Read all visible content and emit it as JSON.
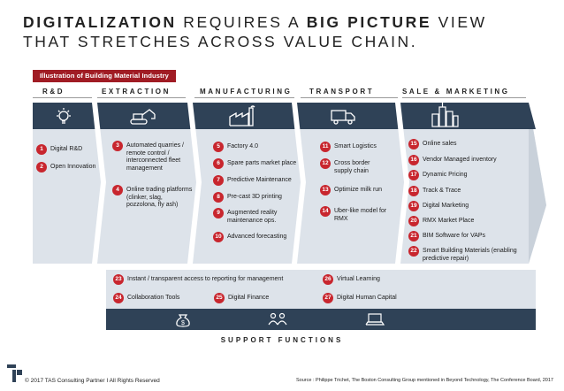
{
  "title": {
    "line1_bold_a": "DIGITALIZATION",
    "line1_regular": " REQUIRES A ",
    "line1_bold_b": "BIG PICTURE",
    "line1_end": " VIEW",
    "line2": "THAT STRETCHES ACROSS VALUE CHAIN."
  },
  "tag": "Illustration of Building Material Industry",
  "columns": [
    {
      "label": "R&D",
      "icon": "lightbulb-icon"
    },
    {
      "label": "EXTRACTION",
      "icon": "excavator-icon"
    },
    {
      "label": "MANUFACTURING",
      "icon": "factory-icon"
    },
    {
      "label": "TRANSPORT",
      "icon": "truck-icon"
    },
    {
      "label": "SALE & MARKETING",
      "icon": "city-buildings-icon"
    }
  ],
  "items": {
    "rnd": [
      {
        "n": "1",
        "text": "Digital R&D"
      },
      {
        "n": "2",
        "text": "Open Innovation"
      }
    ],
    "extraction": [
      {
        "n": "3",
        "text": "Automated quarries / remote control / interconnected fleet management"
      },
      {
        "n": "4",
        "text": "Online trading platforms (clinker, slag, pozzolona, fly ash)"
      }
    ],
    "manufacturing": [
      {
        "n": "5",
        "text": "Factory 4.0"
      },
      {
        "n": "6",
        "text": "Spare parts market place"
      },
      {
        "n": "7",
        "text": "Predictive Maintenance"
      },
      {
        "n": "8",
        "text": "Pre-cast 3D printing"
      },
      {
        "n": "9",
        "text": "Augmented reality maintenance ops."
      },
      {
        "n": "10",
        "text": "Advanced forecasting"
      }
    ],
    "transport": [
      {
        "n": "11",
        "text": "Smart Logistics"
      },
      {
        "n": "12",
        "text": "Cross border supply chain"
      },
      {
        "n": "13",
        "text": "Optimize milk run"
      },
      {
        "n": "14",
        "text": "Uber-like model for RMX"
      }
    ],
    "sales": [
      {
        "n": "15",
        "text": "Online sales"
      },
      {
        "n": "16",
        "text": "Vendor Managed inventory"
      },
      {
        "n": "17",
        "text": "Dynamic Pricing"
      },
      {
        "n": "18",
        "text": "Track & Trace"
      },
      {
        "n": "19",
        "text": "Digital Marketing"
      },
      {
        "n": "20",
        "text": "RMX Market Place"
      },
      {
        "n": "21",
        "text": "BIM Software for VAPs"
      },
      {
        "n": "22",
        "text": "Smart Building Materials (enabling predictive repair)"
      }
    ],
    "support": [
      {
        "n": "23",
        "text": "Instant / transparent access to reporting for management"
      },
      {
        "n": "24",
        "text": "Collaboration Tools"
      },
      {
        "n": "25",
        "text": "Digital Finance"
      },
      {
        "n": "26",
        "text": "Virtual Learning"
      },
      {
        "n": "27",
        "text": "Digital Human Capital"
      }
    ]
  },
  "support_icons": [
    "people-icon",
    "money-bag-icon",
    "laptop-icon"
  ],
  "support_label": "SUPPORT FUNCTIONS",
  "footer": {
    "copyright": "© 2017 TAS Consulting Partner  I  All Rights Reserved",
    "source": "Source :  Philippe Trichet, The Boston Consulting Group mentioned in Beyond Technology, The Conference Board, 2017"
  },
  "colors": {
    "band_dark": "#2f4257",
    "band_light": "#dde3ea",
    "band_border": "#b9c3ce",
    "accent_red": "#c8262e",
    "tag_red": "#a01c24"
  }
}
